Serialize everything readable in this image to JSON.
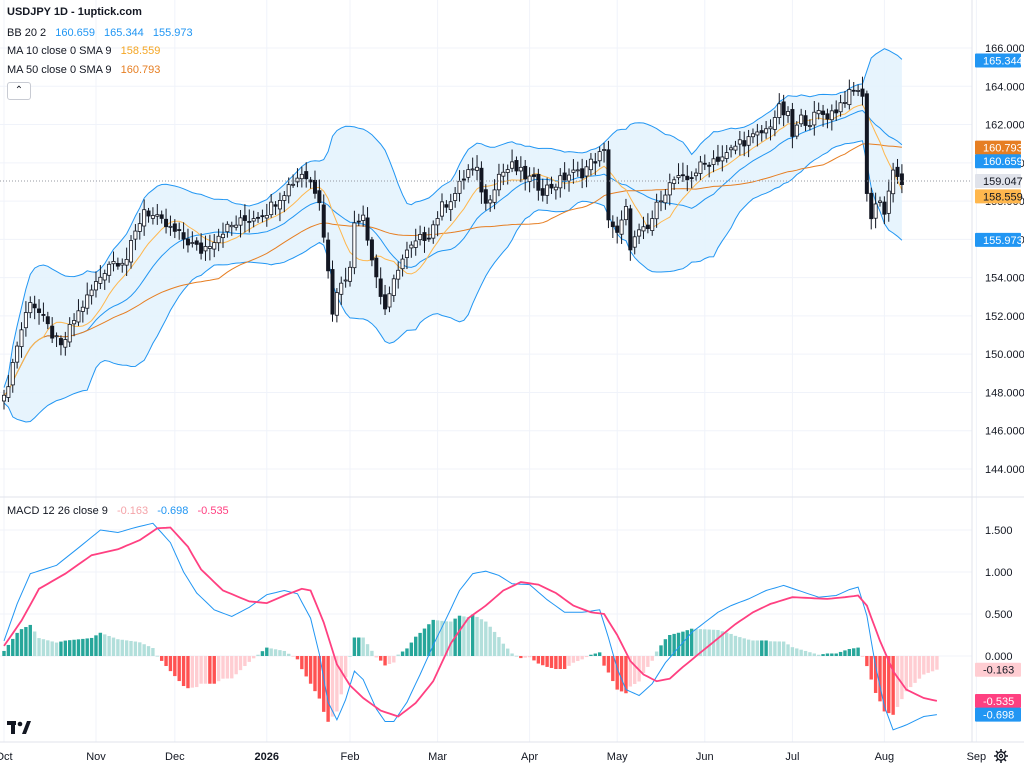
{
  "header": {
    "title": "USDJPY 1D - 1uptick.com",
    "bb": {
      "label": "BB 20 2",
      "mid": "160.659",
      "upper": "165.344",
      "lower": "155.973"
    },
    "ma10": {
      "label": "MA 10 close 0 SMA 9",
      "value": "158.559"
    },
    "ma50": {
      "label": "MA 50 close 0 SMA 9",
      "value": "160.793"
    },
    "macd": {
      "label": "MACD 12 26 close 9",
      "hist": "-0.163",
      "macd": "-0.698",
      "signal": "-0.535"
    }
  },
  "colors": {
    "up": "#26a69a",
    "down": "#ef5350",
    "candle": "#131722",
    "bb": "#2196f3",
    "bb_fill": "#e3f2fd",
    "ma10": "#ffb74d",
    "ma50": "#e67e22",
    "macd": "#2196f3",
    "signal": "#ff4081",
    "hist_up_strong": "#26a69a",
    "hist_up_weak": "#b2dfdb",
    "hist_down_strong": "#ff5252",
    "hist_down_weak": "#ffcdd2"
  },
  "icons": {
    "collapse": "chevron-up-icon",
    "logo": "tradingview-logo",
    "settings": "gear-icon"
  },
  "chart_data": [
    {
      "type": "candlestick",
      "title": "USDJPY 1D - 1uptick.com",
      "ylim": [
        143,
        167
      ],
      "yticks": [
        144,
        146,
        148,
        150,
        152,
        154,
        156,
        158,
        160,
        162,
        164,
        166
      ],
      "ytick_labels": [
        "144.000",
        "146.000",
        "148.000",
        "150.000",
        "152.000",
        "154.000",
        "156.000",
        "158.000",
        "160.000",
        "162.000",
        "164.000",
        "166.000"
      ],
      "x_month_labels": [
        {
          "label": "Oct",
          "index": 0
        },
        {
          "label": "Nov",
          "index": 21
        },
        {
          "label": "Dec",
          "index": 39
        },
        {
          "label": "2026",
          "index": 60
        },
        {
          "label": "Feb",
          "index": 79
        },
        {
          "label": "Mar",
          "index": 99
        },
        {
          "label": "Apr",
          "index": 120
        },
        {
          "label": "May",
          "index": 140
        },
        {
          "label": "Jun",
          "index": 160
        },
        {
          "label": "Jul",
          "index": 180
        },
        {
          "label": "Aug",
          "index": 201
        },
        {
          "label": "Sep",
          "index": 222
        }
      ],
      "num_slots": 238,
      "close_keypoints": [
        [
          0,
          147.6
        ],
        [
          3,
          150.5
        ],
        [
          6,
          152.9
        ],
        [
          10,
          151.4
        ],
        [
          13,
          150.3
        ],
        [
          16,
          151.8
        ],
        [
          21,
          153.7
        ],
        [
          24,
          154.8
        ],
        [
          28,
          155.0
        ],
        [
          32,
          157.6
        ],
        [
          35,
          157.0
        ],
        [
          40,
          156.2
        ],
        [
          45,
          155.4
        ],
        [
          50,
          156.5
        ],
        [
          55,
          157.0
        ],
        [
          60,
          157.5
        ],
        [
          65,
          158.8
        ],
        [
          68,
          159.5
        ],
        [
          70,
          159.0
        ],
        [
          72,
          158.2
        ],
        [
          73,
          156.3
        ],
        [
          75,
          152.3
        ],
        [
          77,
          153.9
        ],
        [
          79,
          154.4
        ],
        [
          80,
          156.9
        ],
        [
          82,
          157.4
        ],
        [
          84,
          155.0
        ],
        [
          86,
          153.1
        ],
        [
          87,
          152.4
        ],
        [
          88,
          152.9
        ],
        [
          90,
          154.6
        ],
        [
          92,
          155.3
        ],
        [
          95,
          156.0
        ],
        [
          97,
          156.3
        ],
        [
          100,
          157.7
        ],
        [
          103,
          158.4
        ],
        [
          106,
          159.6
        ],
        [
          108,
          159.5
        ],
        [
          110,
          157.8
        ],
        [
          113,
          159.4
        ],
        [
          116,
          159.8
        ],
        [
          119,
          159.3
        ],
        [
          121,
          159.0
        ],
        [
          123,
          158.6
        ],
        [
          126,
          158.9
        ],
        [
          129,
          159.4
        ],
        [
          132,
          159.5
        ],
        [
          134,
          160.0
        ],
        [
          136,
          160.4
        ],
        [
          137,
          160.5
        ],
        [
          138,
          157.2
        ],
        [
          140,
          156.2
        ],
        [
          142,
          157.5
        ],
        [
          143,
          155.7
        ],
        [
          145,
          156.3
        ],
        [
          147,
          156.5
        ],
        [
          150,
          158.3
        ],
        [
          153,
          159.1
        ],
        [
          156,
          159.1
        ],
        [
          159,
          159.8
        ],
        [
          162,
          160.2
        ],
        [
          165,
          160.4
        ],
        [
          168,
          161.1
        ],
        [
          171,
          161.3
        ],
        [
          174,
          161.7
        ],
        [
          177,
          162.8
        ],
        [
          179,
          162.4
        ],
        [
          180,
          161.4
        ],
        [
          182,
          162.3
        ],
        [
          184,
          162.2
        ],
        [
          186,
          162.6
        ],
        [
          188,
          162.5
        ],
        [
          190,
          162.8
        ],
        [
          192,
          163.4
        ],
        [
          194,
          163.7
        ],
        [
          195,
          163.9
        ],
        [
          196,
          163.3
        ],
        [
          197,
          158.6
        ],
        [
          198,
          157.1
        ],
        [
          199,
          157.8
        ],
        [
          200,
          158.2
        ],
        [
          201,
          157.3
        ],
        [
          202,
          158.6
        ],
        [
          203,
          159.4
        ],
        [
          204,
          159.2
        ],
        [
          205,
          159.0
        ]
      ],
      "bb": {
        "upper": 165.344,
        "middle": 160.659,
        "lower": 155.973
      },
      "ma10": 158.559,
      "ma50": 160.793,
      "last": 159.047,
      "price_labels": [
        "165.344",
        "160.793",
        "160.659",
        "159.047",
        "158.559",
        "155.973"
      ]
    },
    {
      "type": "macd",
      "title": "MACD 12 26 close 9",
      "ylim": [
        -1.1,
        1.75
      ],
      "yticks": [
        0.0,
        0.5,
        1.0,
        1.5
      ],
      "ytick_labels": [
        "0.000",
        "0.500",
        "1.000",
        "1.500"
      ],
      "macd_keypoints": [
        [
          0,
          0.18
        ],
        [
          3,
          0.62
        ],
        [
          6,
          0.98
        ],
        [
          12,
          1.08
        ],
        [
          18,
          1.33
        ],
        [
          22,
          1.5
        ],
        [
          26,
          1.47
        ],
        [
          30,
          1.53
        ],
        [
          34,
          1.58
        ],
        [
          38,
          1.35
        ],
        [
          41,
          1.0
        ],
        [
          44,
          0.75
        ],
        [
          48,
          0.55
        ],
        [
          52,
          0.47
        ],
        [
          56,
          0.58
        ],
        [
          60,
          0.73
        ],
        [
          64,
          0.78
        ],
        [
          67,
          0.74
        ],
        [
          70,
          0.45
        ],
        [
          72,
          0.02
        ],
        [
          74,
          -0.55
        ],
        [
          76,
          -0.76
        ],
        [
          78,
          -0.52
        ],
        [
          80,
          -0.18
        ],
        [
          82,
          -0.28
        ],
        [
          85,
          -0.63
        ],
        [
          87,
          -0.78
        ],
        [
          89,
          -0.78
        ],
        [
          92,
          -0.55
        ],
        [
          95,
          -0.22
        ],
        [
          98,
          0.13
        ],
        [
          101,
          0.45
        ],
        [
          104,
          0.78
        ],
        [
          107,
          0.98
        ],
        [
          110,
          1.01
        ],
        [
          113,
          0.96
        ],
        [
          116,
          0.86
        ],
        [
          120,
          0.85
        ],
        [
          124,
          0.67
        ],
        [
          128,
          0.52
        ],
        [
          132,
          0.52
        ],
        [
          136,
          0.55
        ],
        [
          138,
          0.22
        ],
        [
          140,
          -0.15
        ],
        [
          142,
          -0.4
        ],
        [
          145,
          -0.47
        ],
        [
          148,
          -0.33
        ],
        [
          151,
          -0.08
        ],
        [
          154,
          0.1
        ],
        [
          157,
          0.28
        ],
        [
          160,
          0.4
        ],
        [
          163,
          0.52
        ],
        [
          166,
          0.6
        ],
        [
          170,
          0.68
        ],
        [
          174,
          0.78
        ],
        [
          178,
          0.84
        ],
        [
          182,
          0.77
        ],
        [
          186,
          0.7
        ],
        [
          190,
          0.72
        ],
        [
          193,
          0.79
        ],
        [
          195,
          0.82
        ],
        [
          197,
          0.48
        ],
        [
          199,
          -0.12
        ],
        [
          201,
          -0.6
        ],
        [
          203,
          -0.88
        ],
        [
          206,
          -0.82
        ],
        [
          210,
          -0.72
        ],
        [
          213,
          -0.698
        ]
      ],
      "signal_keypoints": [
        [
          0,
          0.12
        ],
        [
          4,
          0.42
        ],
        [
          8,
          0.8
        ],
        [
          14,
          0.98
        ],
        [
          20,
          1.2
        ],
        [
          26,
          1.27
        ],
        [
          31,
          1.38
        ],
        [
          35,
          1.52
        ],
        [
          38,
          1.53
        ],
        [
          42,
          1.3
        ],
        [
          45,
          1.03
        ],
        [
          50,
          0.78
        ],
        [
          56,
          0.65
        ],
        [
          60,
          0.63
        ],
        [
          64,
          0.72
        ],
        [
          68,
          0.8
        ],
        [
          70,
          0.78
        ],
        [
          73,
          0.4
        ],
        [
          76,
          -0.1
        ],
        [
          79,
          -0.35
        ],
        [
          82,
          -0.5
        ],
        [
          86,
          -0.65
        ],
        [
          90,
          -0.72
        ],
        [
          94,
          -0.56
        ],
        [
          98,
          -0.3
        ],
        [
          102,
          0.15
        ],
        [
          106,
          0.45
        ],
        [
          110,
          0.6
        ],
        [
          114,
          0.78
        ],
        [
          118,
          0.88
        ],
        [
          122,
          0.85
        ],
        [
          126,
          0.75
        ],
        [
          130,
          0.6
        ],
        [
          134,
          0.52
        ],
        [
          137,
          0.5
        ],
        [
          140,
          0.25
        ],
        [
          143,
          -0.06
        ],
        [
          146,
          -0.22
        ],
        [
          149,
          -0.3
        ],
        [
          152,
          -0.27
        ],
        [
          155,
          -0.13
        ],
        [
          159,
          0.04
        ],
        [
          163,
          0.21
        ],
        [
          167,
          0.38
        ],
        [
          171,
          0.52
        ],
        [
          175,
          0.62
        ],
        [
          180,
          0.7
        ],
        [
          184,
          0.69
        ],
        [
          188,
          0.68
        ],
        [
          192,
          0.7
        ],
        [
          195,
          0.72
        ],
        [
          197,
          0.6
        ],
        [
          200,
          0.18
        ],
        [
          203,
          -0.18
        ],
        [
          206,
          -0.4
        ],
        [
          210,
          -0.5
        ],
        [
          213,
          -0.535
        ]
      ],
      "last_hist": -0.163,
      "last_macd": -0.698,
      "last_signal": -0.535,
      "price_labels": [
        "-0.163",
        "-0.535",
        "-0.698"
      ]
    }
  ]
}
